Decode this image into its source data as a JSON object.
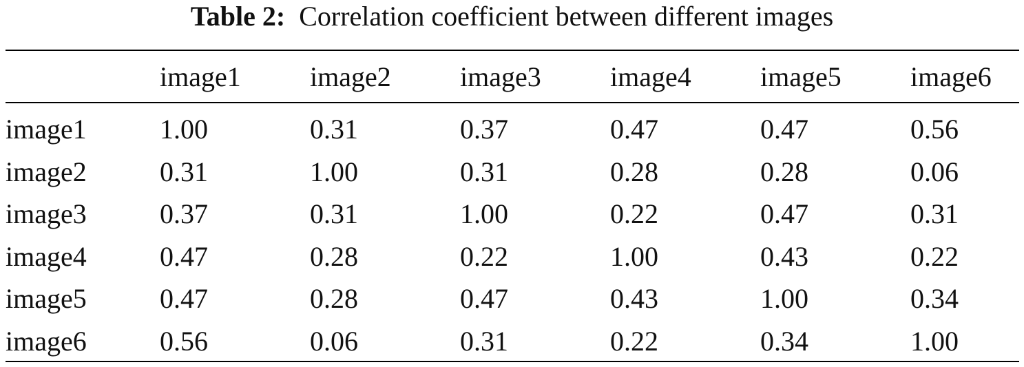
{
  "caption": {
    "label": "Table 2:",
    "text": "Correlation coefficient between different images"
  },
  "table": {
    "headers": [
      "",
      "image1",
      "image2",
      "image3",
      "image4",
      "image5",
      "image6"
    ],
    "rows": [
      {
        "label": "image1",
        "values": [
          "1.00",
          "0.31",
          "0.37",
          "0.47",
          "0.47",
          "0.56"
        ]
      },
      {
        "label": "image2",
        "values": [
          "0.31",
          "1.00",
          "0.31",
          "0.28",
          "0.28",
          "0.06"
        ]
      },
      {
        "label": "image3",
        "values": [
          "0.37",
          "0.31",
          "1.00",
          "0.22",
          "0.47",
          "0.31"
        ]
      },
      {
        "label": "image4",
        "values": [
          "0.47",
          "0.28",
          "0.22",
          "1.00",
          "0.43",
          "0.22"
        ]
      },
      {
        "label": "image5",
        "values": [
          "0.47",
          "0.28",
          "0.47",
          "0.43",
          "1.00",
          "0.34"
        ]
      },
      {
        "label": "image6",
        "values": [
          "0.56",
          "0.06",
          "0.31",
          "0.22",
          "0.34",
          "1.00"
        ]
      }
    ]
  }
}
